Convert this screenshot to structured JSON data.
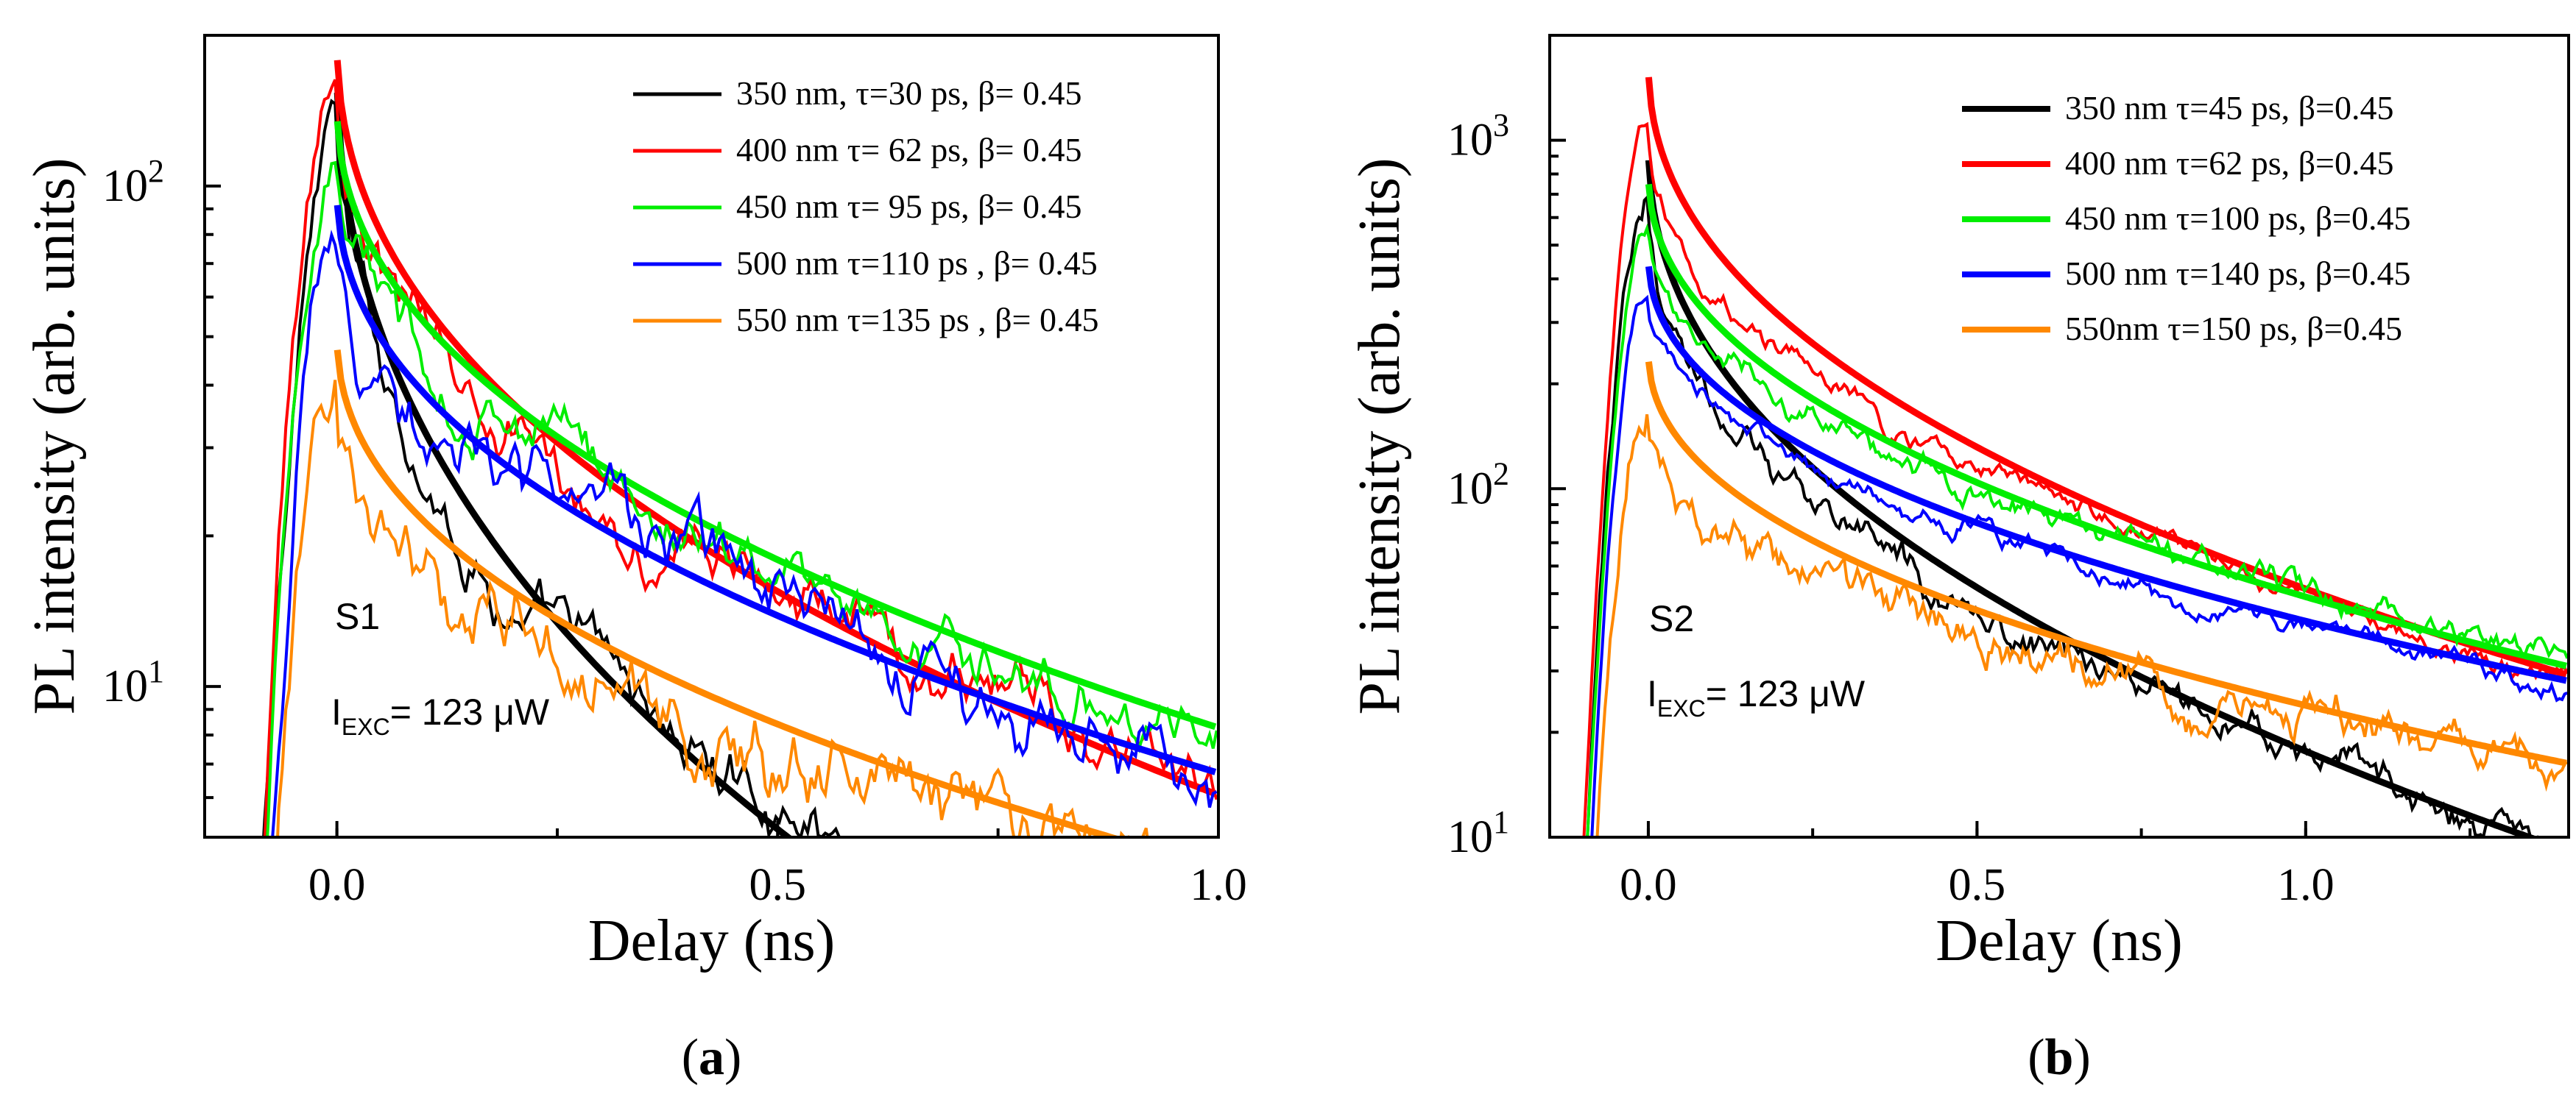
{
  "chart_data": [
    {
      "type": "line",
      "panel_label": "(a)",
      "panel_letter": "a",
      "xlabel": "Delay (ns)",
      "ylabel": "PL intensity (arb. units)",
      "yscale": "log",
      "xlim": [
        -0.15,
        1.0
      ],
      "ylim": [
        5,
        200
      ],
      "xticks": [
        0.0,
        0.5,
        1.0
      ],
      "xtick_labels": [
        "0.0",
        "0.5",
        "1.0"
      ],
      "yticks": [
        10,
        100
      ],
      "ytick_labels": [
        {
          "base": "10",
          "exp": "1"
        },
        {
          "base": "10",
          "exp": "2"
        }
      ],
      "legend_position": "top-right",
      "annotations": {
        "sample": "S1",
        "exc_prefix": "I",
        "exc_sub": "EXC",
        "exc_value": "= 123 μW"
      },
      "series": [
        {
          "name": "350 nm, τ=30 ps, β= 0.45",
          "color": "#000000",
          "tau_ps": 30,
          "beta": 0.45,
          "peak": 140,
          "fit_amplitude": 180,
          "noise": 0.1
        },
        {
          "name": "400 nm τ= 62 ps, β= 0.45",
          "color": "#ff0000",
          "tau_ps": 62,
          "beta": 0.45,
          "peak": 155,
          "fit_amplitude": 200,
          "noise": 0.1
        },
        {
          "name": "450 nm τ= 95 ps, β= 0.45",
          "color": "#00ee00",
          "tau_ps": 95,
          "beta": 0.45,
          "peak": 120,
          "fit_amplitude": 148,
          "noise": 0.1
        },
        {
          "name": "500 nm τ=110 ps , β= 0.45",
          "color": "#0000ff",
          "tau_ps": 110,
          "beta": 0.45,
          "peak": 80,
          "fit_amplitude": 100,
          "noise": 0.12
        },
        {
          "name": "550 nm τ=135 ps , β= 0.45",
          "color": "#ff8800",
          "tau_ps": 135,
          "beta": 0.45,
          "peak": 40,
          "fit_amplitude": 51,
          "noise": 0.15
        }
      ]
    },
    {
      "type": "line",
      "panel_label": "(b)",
      "panel_letter": "b",
      "xlabel": "Delay (ns)",
      "ylabel": "PL intensity (arb. units)",
      "yscale": "log",
      "xlim": [
        -0.15,
        1.4
      ],
      "ylim": [
        10,
        2000
      ],
      "xticks": [
        0.0,
        0.5,
        1.0
      ],
      "xtick_labels": [
        "0.0",
        "0.5",
        "1.0"
      ],
      "yticks": [
        10,
        100,
        1000
      ],
      "ytick_labels": [
        {
          "base": "10",
          "exp": "1"
        },
        {
          "base": "10",
          "exp": "2"
        },
        {
          "base": "10",
          "exp": "3"
        }
      ],
      "legend_position": "top-right",
      "annotations": {
        "sample": "S2",
        "exc_prefix": "I",
        "exc_sub": "EXC",
        "exc_value": "= 123 μW"
      },
      "series": [
        {
          "name": "350 nm τ=45 ps, β=0.45",
          "color": "#000000",
          "tau_ps": 45,
          "beta": 0.45,
          "peak": 650,
          "fit_amplitude": 1000,
          "noise": 0.08
        },
        {
          "name": "400 nm τ=62 ps, β=0.45",
          "color": "#ff0000",
          "tau_ps": 62,
          "beta": 0.45,
          "peak": 1200,
          "fit_amplitude": 1700,
          "noise": 0.05
        },
        {
          "name": "450 nm τ=100 ps, β=0.45",
          "color": "#00ee00",
          "tau_ps": 100,
          "beta": 0.45,
          "peak": 650,
          "fit_amplitude": 820,
          "noise": 0.06
        },
        {
          "name": "500 nm τ=140 ps, β=0.45",
          "color": "#0000ff",
          "tau_ps": 140,
          "beta": 0.45,
          "peak": 370,
          "fit_amplitude": 470,
          "noise": 0.05
        },
        {
          "name": "550nm τ=150 ps, β=0.45",
          "color": "#ff8800",
          "tau_ps": 150,
          "beta": 0.45,
          "peak": 200,
          "fit_amplitude": 250,
          "noise": 0.1
        }
      ]
    }
  ]
}
